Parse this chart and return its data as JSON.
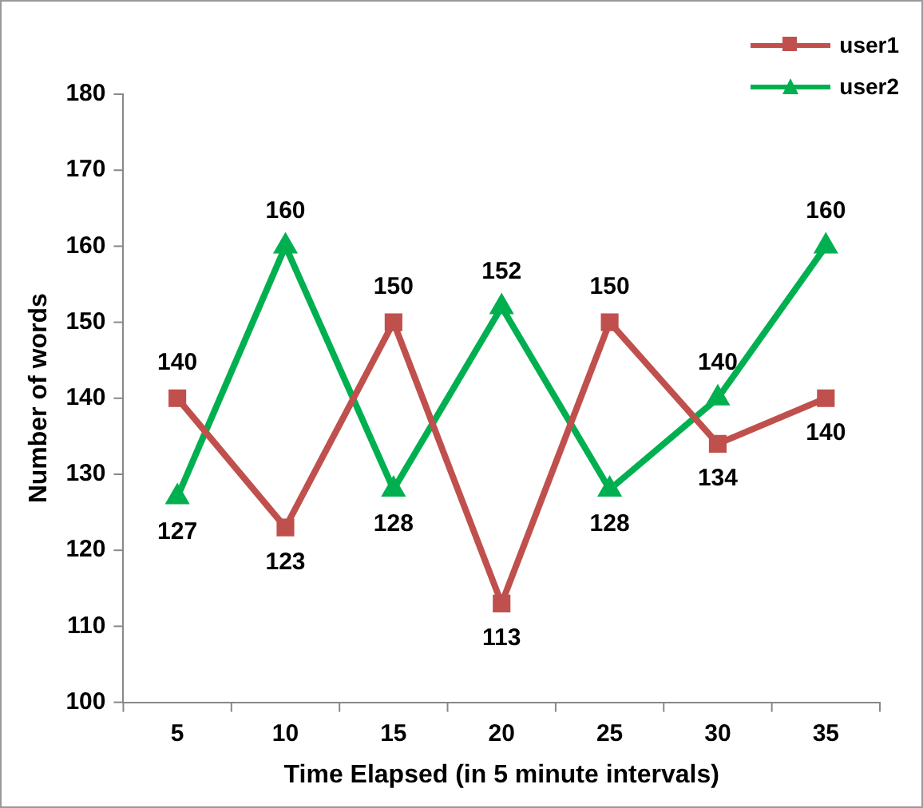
{
  "chart_data": {
    "type": "line",
    "xlabel": "Time Elapsed (in 5 minute intervals)",
    "ylabel": "Number of words",
    "categories": [
      "5",
      "10",
      "15",
      "20",
      "25",
      "30",
      "35"
    ],
    "series": [
      {
        "name": "user1",
        "color": "#c0504d",
        "marker": "square",
        "values": [
          140,
          123,
          150,
          113,
          150,
          134,
          140
        ]
      },
      {
        "name": "user2",
        "color": "#00b050",
        "marker": "triangle",
        "values": [
          127,
          160,
          128,
          152,
          128,
          140,
          160
        ]
      }
    ],
    "ylim": [
      100,
      180
    ],
    "yticks": [
      100,
      110,
      120,
      130,
      140,
      150,
      160,
      170,
      180
    ],
    "grid": false,
    "legend": "top right",
    "data_labels": true
  }
}
